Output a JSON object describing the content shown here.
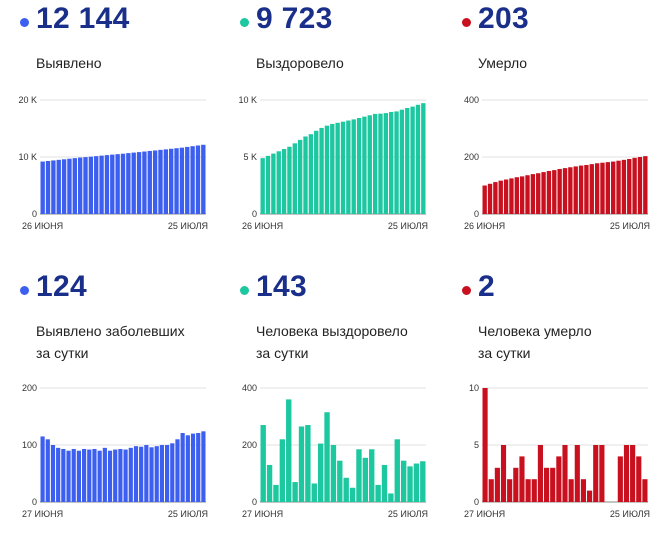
{
  "panels": [
    {
      "value": "12 144",
      "label": [
        "Выявлено"
      ],
      "color": "#3d5ff0",
      "x_start": "26 ИЮНЯ",
      "x_end": "25 ИЮЛЯ",
      "y_ticks": [
        "0",
        "10 K",
        "20 K"
      ],
      "ylim": [
        0,
        20000
      ]
    },
    {
      "value": "9 723",
      "label": [
        "Выздоровело"
      ],
      "color": "#1dc8a0",
      "x_start": "26 ИЮНЯ",
      "x_end": "25 ИЮЛЯ",
      "y_ticks": [
        "0",
        "5 K",
        "10 K"
      ],
      "ylim": [
        0,
        10000
      ]
    },
    {
      "value": "203",
      "label": [
        "Умерло"
      ],
      "color": "#c8101e",
      "x_start": "26 ИЮНЯ",
      "x_end": "25 ИЮЛЯ",
      "y_ticks": [
        "0",
        "200",
        "400"
      ],
      "ylim": [
        0,
        400
      ]
    },
    {
      "value": "124",
      "label": [
        "Выявлено заболевших",
        "за сутки"
      ],
      "color": "#3d5ff0",
      "x_start": "27 ИЮНЯ",
      "x_end": "25 ИЮЛЯ",
      "y_ticks": [
        "0",
        "100",
        "200"
      ],
      "ylim": [
        0,
        200
      ]
    },
    {
      "value": "143",
      "label": [
        "Человека выздоровело",
        "за сутки"
      ],
      "color": "#1dc8a0",
      "x_start": "27 ИЮНЯ",
      "x_end": "25 ИЮЛЯ",
      "y_ticks": [
        "0",
        "200",
        "400"
      ],
      "ylim": [
        0,
        400
      ]
    },
    {
      "value": "2",
      "label": [
        "Человека умерло",
        "за сутки"
      ],
      "color": "#c8101e",
      "x_start": "27 ИЮНЯ",
      "x_end": "25 ИЮЛЯ",
      "y_ticks": [
        "0",
        "5",
        "10"
      ],
      "ylim": [
        0,
        10
      ]
    }
  ],
  "chart_data": [
    {
      "type": "bar",
      "series": [
        {
          "values": [
            9200,
            9300,
            9400,
            9500,
            9600,
            9700,
            9800,
            9900,
            9980,
            10060,
            10150,
            10240,
            10330,
            10420,
            10500,
            10580,
            10680,
            10770,
            10860,
            10960,
            11060,
            11150,
            11250,
            11340,
            11440,
            11540,
            11640,
            11770,
            11900,
            12020,
            12144
          ]
        }
      ],
      "ylim": [
        0,
        20000
      ]
    },
    {
      "type": "bar",
      "series": [
        {
          "values": [
            4900,
            5100,
            5300,
            5500,
            5700,
            5900,
            6200,
            6500,
            6800,
            7000,
            7300,
            7550,
            7750,
            7900,
            8000,
            8100,
            8200,
            8300,
            8420,
            8540,
            8660,
            8780,
            8800,
            8850,
            8950,
            9000,
            9150,
            9300,
            9420,
            9580,
            9723
          ]
        }
      ],
      "ylim": [
        0,
        10000
      ]
    },
    {
      "type": "bar",
      "series": [
        {
          "values": [
            100,
            106,
            112,
            117,
            121,
            125,
            129,
            132,
            136,
            140,
            143,
            147,
            151,
            154,
            158,
            161,
            164,
            167,
            170,
            172,
            175,
            178,
            180,
            182,
            184,
            187,
            190,
            193,
            197,
            200,
            203
          ]
        }
      ],
      "ylim": [
        0,
        400
      ]
    },
    {
      "type": "bar",
      "series": [
        {
          "values": [
            115,
            110,
            100,
            95,
            93,
            90,
            93,
            90,
            93,
            92,
            93,
            90,
            95,
            90,
            92,
            93,
            92,
            95,
            98,
            97,
            100,
            96,
            98,
            100,
            100,
            103,
            110,
            121,
            117,
            120,
            121,
            124
          ]
        }
      ],
      "ylim": [
        0,
        200
      ]
    },
    {
      "type": "bar",
      "series": [
        {
          "values": [
            270,
            130,
            60,
            220,
            360,
            70,
            265,
            270,
            65,
            205,
            315,
            200,
            145,
            85,
            50,
            185,
            155,
            185,
            60,
            130,
            30,
            220,
            145,
            125,
            135,
            143
          ]
        }
      ],
      "ylim": [
        0,
        400
      ]
    },
    {
      "type": "bar",
      "series": [
        {
          "values": [
            10,
            2,
            3,
            5,
            2,
            3,
            4,
            2,
            2,
            5,
            3,
            3,
            4,
            5,
            2,
            5,
            2,
            1,
            5,
            5,
            0,
            0,
            4,
            5,
            5,
            4,
            2
          ]
        }
      ],
      "ylim": [
        0,
        10
      ]
    }
  ]
}
